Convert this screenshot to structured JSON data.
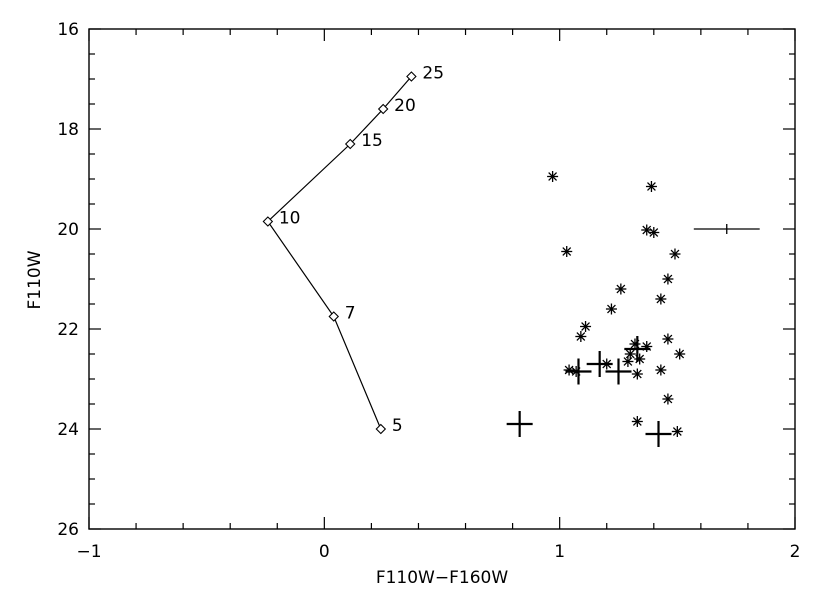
{
  "chart_data": {
    "type": "scatter",
    "title": "",
    "xlabel": "F110W−F160W",
    "ylabel": "F110W",
    "xlim": [
      -1,
      2
    ],
    "ylim": [
      26,
      16
    ],
    "y_axis_inverted": true,
    "grid": false,
    "x_ticks": [
      "−1",
      "0",
      "1",
      "2"
    ],
    "y_ticks": [
      "16",
      "18",
      "20",
      "22",
      "24",
      "26"
    ],
    "colors": {
      "axis": "#000000",
      "marks": "#000000",
      "background": "#ffffff"
    },
    "series": [
      {
        "marker": "diamond-line",
        "points": [
          {
            "x": 0.24,
            "y": 24.0,
            "label": "5"
          },
          {
            "x": 0.04,
            "y": 21.75,
            "label": "7"
          },
          {
            "x": -0.24,
            "y": 19.85,
            "label": "10"
          },
          {
            "x": 0.11,
            "y": 18.3,
            "label": "15"
          },
          {
            "x": 0.25,
            "y": 17.6,
            "label": "20"
          },
          {
            "x": 0.37,
            "y": 16.95,
            "label": "25"
          }
        ]
      },
      {
        "marker": "asterisk",
        "points": [
          {
            "x": 0.97,
            "y": 18.95
          },
          {
            "x": 1.39,
            "y": 19.15
          },
          {
            "x": 1.37,
            "y": 20.02
          },
          {
            "x": 1.4,
            "y": 20.07
          },
          {
            "x": 1.03,
            "y": 20.45
          },
          {
            "x": 1.49,
            "y": 20.5
          },
          {
            "x": 1.46,
            "y": 21.0
          },
          {
            "x": 1.26,
            "y": 21.2
          },
          {
            "x": 1.43,
            "y": 21.4
          },
          {
            "x": 1.22,
            "y": 21.6
          },
          {
            "x": 1.11,
            "y": 21.95
          },
          {
            "x": 1.09,
            "y": 22.15
          },
          {
            "x": 1.46,
            "y": 22.2
          },
          {
            "x": 1.32,
            "y": 22.3
          },
          {
            "x": 1.37,
            "y": 22.35
          },
          {
            "x": 1.3,
            "y": 22.5
          },
          {
            "x": 1.51,
            "y": 22.5
          },
          {
            "x": 1.34,
            "y": 22.6
          },
          {
            "x": 1.29,
            "y": 22.65
          },
          {
            "x": 1.2,
            "y": 22.7
          },
          {
            "x": 1.04,
            "y": 22.82
          },
          {
            "x": 1.07,
            "y": 22.85
          },
          {
            "x": 1.43,
            "y": 22.82
          },
          {
            "x": 1.33,
            "y": 22.9
          },
          {
            "x": 1.46,
            "y": 23.4
          },
          {
            "x": 1.33,
            "y": 23.85
          },
          {
            "x": 1.5,
            "y": 24.05
          }
        ]
      },
      {
        "marker": "plus",
        "points": [
          {
            "x": 1.33,
            "y": 22.4
          },
          {
            "x": 1.17,
            "y": 22.7
          },
          {
            "x": 1.08,
            "y": 22.85
          },
          {
            "x": 1.25,
            "y": 22.85
          },
          {
            "x": 0.83,
            "y": 23.9
          },
          {
            "x": 1.42,
            "y": 24.1
          }
        ]
      },
      {
        "marker": "error-bar",
        "points": [
          {
            "x": 1.71,
            "y": 20.0,
            "xerr": 0.14
          }
        ]
      }
    ]
  }
}
